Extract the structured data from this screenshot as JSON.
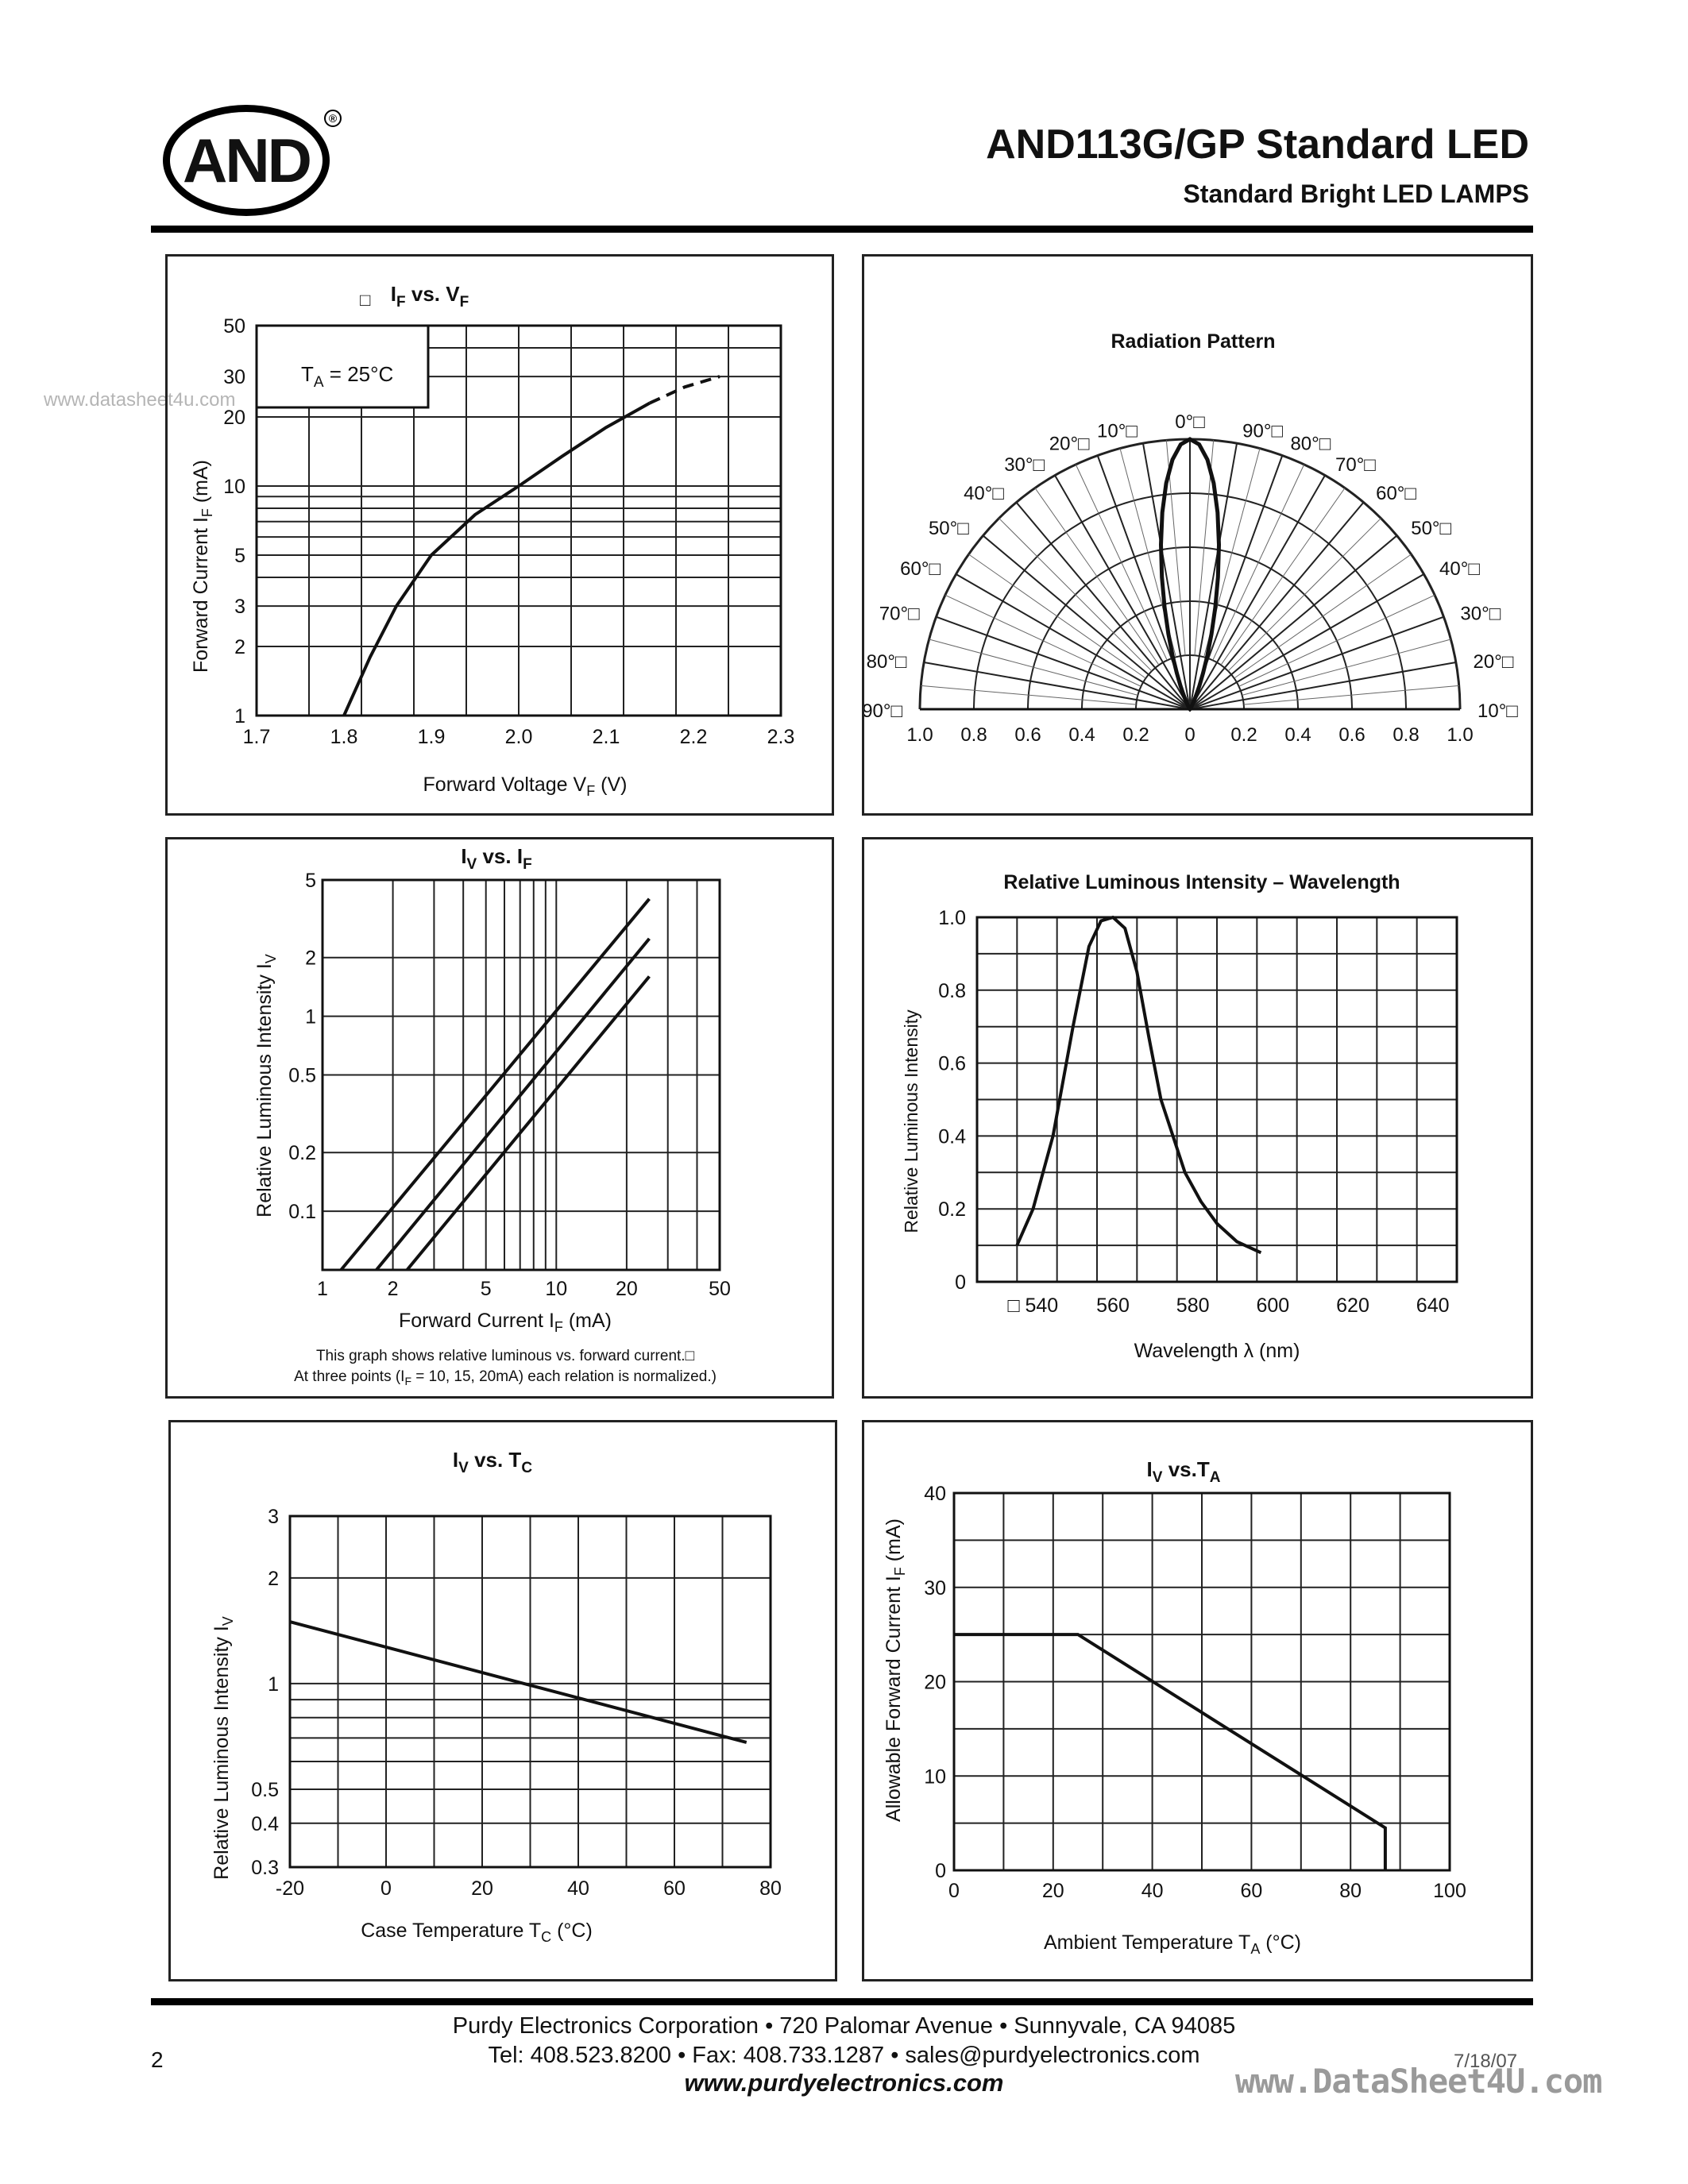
{
  "header": {
    "logo_text": "AND",
    "logo_mark": "®",
    "title": "AND113G/GP Standard LED",
    "subtitle": "Standard Bright LED LAMPS",
    "watermark": "www.datasheet4u.com"
  },
  "chart_data": [
    {
      "id": "if-vf",
      "type": "line",
      "title": "IF vs. VF",
      "title_main": "I",
      "title_sub1": "F",
      "title_mid": " vs. V",
      "title_sub2": "F",
      "marker": "□",
      "xlabel": "Forward Voltage VF (V)",
      "xlabel_main": "Forward Voltage V",
      "xlabel_sub": "F",
      "xlabel_end": "  (V)",
      "ylabel": "Forward Current IF (mA)",
      "ylabel_main": "Forward Current  I",
      "ylabel_sub": "F",
      "ylabel_end": "  (mA)",
      "yscale": "log",
      "xlim": [
        1.7,
        2.3
      ],
      "ylim": [
        1,
        50
      ],
      "xticks": [
        "1.7",
        "1.8",
        "1.9",
        "2.0",
        "2.1",
        "2.2",
        "2.3"
      ],
      "yticks": [
        "1",
        "2",
        "3",
        "5",
        "10",
        "20",
        "30",
        "50"
      ],
      "annotation": "TA = 25°C",
      "annotation_main": "T",
      "annotation_sub": "A",
      "annotation_end": " = 25°C",
      "series": [
        {
          "x": [
            1.8,
            1.83,
            1.86,
            1.9,
            1.95,
            2.0,
            2.05,
            2.1,
            2.15
          ],
          "y": [
            1,
            1.8,
            3,
            5,
            7.5,
            10,
            13.5,
            18,
            23
          ],
          "extrapolated": {
            "x": [
              2.15,
              2.19,
              2.23
            ],
            "y": [
              23,
              27,
              30
            ]
          }
        }
      ]
    },
    {
      "id": "radiation",
      "type": "polar",
      "title": "Radiation Pattern",
      "angle_labels_left": [
        "90°□",
        "80°□",
        "70°□",
        "60°□",
        "50°□",
        "40°□",
        "30°□",
        "20°□",
        "10°□"
      ],
      "angle_labels_center": "0°□",
      "angle_labels_right": [
        "10°□",
        "20°□",
        "30°□",
        "40°□",
        "50°□",
        "60°□",
        "70°□",
        "80°□",
        "90°□"
      ],
      "radial_ticks": [
        "1.0",
        "0.8",
        "0.6",
        "0.4",
        "0.2",
        "0",
        "0.2",
        "0.4",
        "0.6",
        "0.8",
        "1.0"
      ],
      "half_angle_deg": 12
    },
    {
      "id": "iv-if",
      "type": "line",
      "title": "IV vs. IF",
      "title_main": "I",
      "title_sub1": "V",
      "title_mid": " vs. I",
      "title_sub2": "F",
      "xlabel": "Forward Current IF (mA)",
      "xlabel_main": "Forward Current I",
      "xlabel_sub": "F",
      "xlabel_end": " (mA)",
      "ylabel": "Relative Luminous Intensity IV",
      "ylabel_main": "Relative Luminous Intensity I",
      "ylabel_sub": "V",
      "xscale": "log",
      "yscale": "log",
      "xlim": [
        1,
        50
      ],
      "ylim": [
        0.05,
        5
      ],
      "xticks": [
        "1",
        "2",
        "5",
        "10",
        "20",
        "50"
      ],
      "yticks": [
        "0.1",
        "0.2",
        "0.5",
        "1",
        "2",
        "5"
      ],
      "note1": "This graph shows relative luminous vs. forward current.□",
      "note2_a": "At three points (I",
      "note2_sub": "F",
      "note2_b": " = 10, 15, 20mA) each relation is normalized.)",
      "series": [
        {
          "x": [
            1.2,
            25
          ],
          "y": [
            0.05,
            4.0
          ]
        },
        {
          "x": [
            1.7,
            25
          ],
          "y": [
            0.05,
            2.5
          ]
        },
        {
          "x": [
            2.3,
            25
          ],
          "y": [
            0.05,
            1.6
          ]
        }
      ]
    },
    {
      "id": "lum-wavelength",
      "type": "line",
      "title": "Relative Luminous Intensity – Wavelength",
      "xlabel": "Wavelength λ (nm)",
      "ylabel": "Relative Luminous Intensity",
      "xlim": [
        530,
        650
      ],
      "ylim": [
        0,
        1.0
      ],
      "xticks": [
        "540",
        "560",
        "580",
        "600",
        "620",
        "640"
      ],
      "x_first_prefix": "□",
      "yticks": [
        "0",
        "0.2",
        "0.4",
        "0.6",
        "0.8",
        "1.0"
      ],
      "series": [
        {
          "x": [
            540,
            544,
            549,
            554,
            558,
            561,
            564,
            567,
            570,
            573,
            576,
            579,
            582,
            586,
            590,
            595,
            601
          ],
          "y": [
            0.1,
            0.2,
            0.4,
            0.7,
            0.92,
            0.99,
            1.0,
            0.97,
            0.85,
            0.67,
            0.5,
            0.4,
            0.3,
            0.22,
            0.16,
            0.11,
            0.08
          ]
        }
      ]
    },
    {
      "id": "iv-tc",
      "type": "line",
      "title": "IV vs. TC",
      "title_main": "I",
      "title_sub1": "V",
      "title_mid": " vs. T",
      "title_sub2": "C",
      "xlabel": "Case Temperature TC (°C)",
      "xlabel_main": "Case Temperature T",
      "xlabel_sub": "C",
      "xlabel_end": " (°C)",
      "ylabel": "Relative Luminous Intensity IV",
      "ylabel_main": "Relative Luminous Intensity I",
      "ylabel_sub": "V",
      "yscale": "log",
      "xlim": [
        -20,
        80
      ],
      "ylim": [
        0.3,
        3
      ],
      "xticks": [
        "-20",
        "0",
        "20",
        "40",
        "60",
        "80"
      ],
      "yticks": [
        "0.3",
        "0.4",
        "0.5",
        "1",
        "2",
        "3"
      ],
      "series": [
        {
          "x": [
            -20,
            75
          ],
          "y": [
            1.5,
            0.68
          ]
        }
      ]
    },
    {
      "id": "iv-ta",
      "type": "line",
      "title": "IV vs.TA",
      "title_main": "I",
      "title_sub1": "V",
      "title_mid": " vs.T",
      "title_sub2": "A",
      "xlabel": "Ambient Temperature TA (°C)",
      "xlabel_main": "Ambient Temperature T",
      "xlabel_sub": "A",
      "xlabel_end": " (°C)",
      "ylabel": "Allowable Forward Current IF (mA)",
      "ylabel_main": "Allowable Forward Current I",
      "ylabel_sub": "F",
      "ylabel_end": " (mA)",
      "xlim": [
        0,
        100
      ],
      "ylim": [
        0,
        40
      ],
      "xticks": [
        "0",
        "20",
        "40",
        "60",
        "80",
        "100"
      ],
      "yticks": [
        "0",
        "10",
        "20",
        "30",
        "40"
      ],
      "series": [
        {
          "x": [
            0,
            25,
            87,
            87
          ],
          "y": [
            25,
            25,
            4.5,
            0
          ]
        }
      ]
    }
  ],
  "footer": {
    "company_line": "Purdy Electronics Corporation  •  720 Palomar Avenue  •  Sunnyvale, CA 94085",
    "contact_line": "Tel: 408.523.8200  •  Fax: 408.733.1287  •  sales@purdyelectronics.com",
    "website": "www.purdyelectronics.com",
    "page_number": "2",
    "date": "7/18/07",
    "watermark": "www.DataSheet4U.com"
  }
}
